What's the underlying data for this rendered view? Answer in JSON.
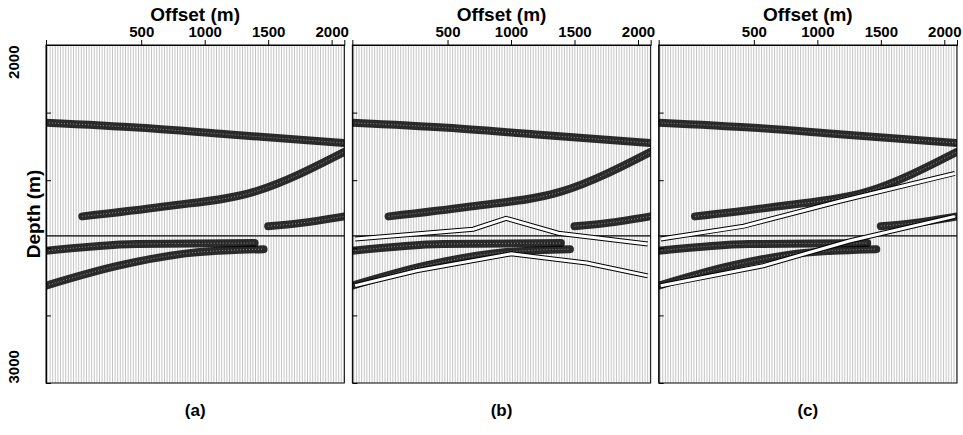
{
  "chart_data": {
    "type": "seismic_wiggle",
    "x_label": "Offset (m)",
    "y_label": "Depth (m)",
    "xlim": [
      -250,
      2100
    ],
    "xticks": [
      500,
      1000,
      1500,
      2000
    ],
    "ylim": [
      2000,
      3000
    ],
    "yticks": [
      2000,
      3000
    ],
    "yminor_ticks": [
      2200,
      2400,
      2600,
      2800
    ],
    "reference_depth": 2565,
    "events": [
      {
        "offset": [
          -250,
          500,
          1200,
          2100
        ],
        "depth": [
          2230,
          2245,
          2265,
          2290
        ]
      },
      {
        "offset": [
          36,
          679,
          1393,
          2100
        ],
        "depth": [
          2507,
          2478,
          2434,
          2316
        ]
      },
      {
        "offset": [
          -250,
          321,
          893,
          1464
        ],
        "depth": [
          2712,
          2653,
          2615,
          2604
        ]
      },
      {
        "offset": [
          1500,
          1750,
          2100
        ],
        "depth": [
          2536,
          2527,
          2507
        ]
      },
      {
        "offset": [
          -250,
          464,
          1393
        ],
        "depth": [
          2609,
          2589,
          2586
        ]
      }
    ],
    "panels": [
      {
        "label": "(a)",
        "picks": []
      },
      {
        "label": "(b)",
        "picks": [
          {
            "offset": [
              -228,
              702,
              962,
              1372,
              2077
            ],
            "depth": [
              2574,
              2545,
              2513,
              2557,
              2589
            ]
          },
          {
            "offset": [
              -228,
              255,
              1000,
              1595,
              2077
            ],
            "depth": [
              2712,
              2668,
              2618,
              2645,
              2683
            ]
          }
        ]
      },
      {
        "label": "(c)",
        "picks": [
          {
            "offset": [
              -234,
              420,
              1167,
              2083
            ],
            "depth": [
              2574,
              2536,
              2463,
              2380
            ]
          },
          {
            "offset": [
              -234,
              573,
              1252,
              2083
            ],
            "depth": [
              2712,
              2653,
              2580,
              2507
            ]
          }
        ]
      }
    ]
  }
}
